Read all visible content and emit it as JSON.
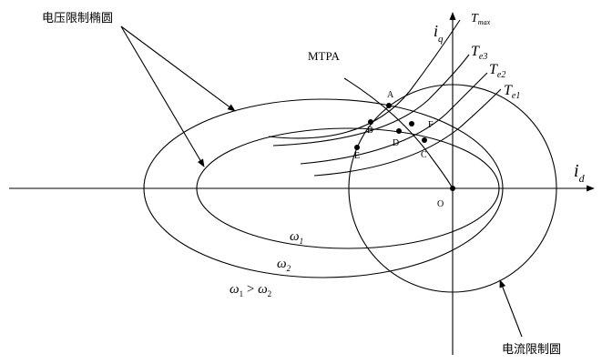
{
  "labels": {
    "voltage_ellipse": "电压限制椭圆",
    "current_circle": "电流限制圆",
    "mtpa": "MTPA",
    "axis_id": "i",
    "axis_id_sub": "d",
    "axis_iq": "i",
    "axis_iq_sub": "q",
    "tmax": "T",
    "tmax_sub": "max",
    "te3": "T",
    "te3_sub": "e3",
    "te2": "T",
    "te2_sub": "e2",
    "te1": "T",
    "te1_sub": "e1",
    "omega1": "ω",
    "omega1_sub": "1",
    "omega2": "ω",
    "omega2_sub": "2",
    "relation_a": "ω",
    "relation_a_sub": "1",
    "relation_op": " > ",
    "relation_b": "ω",
    "relation_b_sub": "2"
  },
  "points": [
    {
      "id": "A",
      "label": "A"
    },
    {
      "id": "B",
      "label": "B"
    },
    {
      "id": "C",
      "label": "C"
    },
    {
      "id": "D",
      "label": "D"
    },
    {
      "id": "E",
      "label": "E"
    },
    {
      "id": "F",
      "label": "F"
    },
    {
      "id": "O",
      "label": "O"
    }
  ]
}
